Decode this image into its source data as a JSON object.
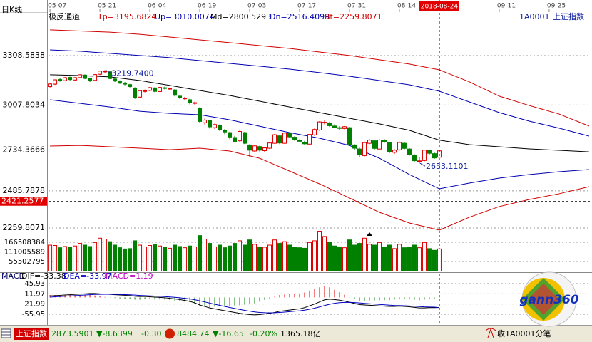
{
  "chart_data": [
    {
      "type": "candlestick",
      "title": "日K线",
      "indicator": "极反通道",
      "symbol": "1A0001",
      "name": "上证指数",
      "xlim": [
        -0.3,
        108.3
      ],
      "xticks": [
        {
          "value": 0,
          "label": "05-07"
        },
        {
          "value": 10,
          "label": "05-21"
        },
        {
          "value": 20,
          "label": "06-04"
        },
        {
          "value": 30,
          "label": "06-19"
        },
        {
          "value": 40,
          "label": "07-03"
        },
        {
          "value": 50,
          "label": "07-17"
        },
        {
          "value": 60,
          "label": "07-31"
        },
        {
          "value": 70,
          "label": "08-14"
        },
        {
          "value": 90,
          "label": "09-11"
        },
        {
          "value": 100,
          "label": "09-25"
        }
      ],
      "ylim": [
        2216.4,
        3516.6
      ],
      "yticks": [
        2259.8071,
        2485.7878,
        2734.3666,
        3007.8034,
        3308.5838
      ],
      "grid": true,
      "up_color": "#e00000",
      "down_color": "#008000",
      "candles": [
        [
          3120,
          3142,
          3115,
          3136
        ],
        [
          3135,
          3164,
          3130,
          3161
        ],
        [
          3163,
          3170,
          3150,
          3159
        ],
        [
          3156,
          3178,
          3152,
          3174
        ],
        [
          3176,
          3180,
          3156,
          3163
        ],
        [
          3160,
          3178,
          3155,
          3174
        ],
        [
          3175,
          3195,
          3170,
          3192
        ],
        [
          3190,
          3194,
          3165,
          3170
        ],
        [
          3168,
          3172,
          3148,
          3155
        ],
        [
          3158,
          3196,
          3155,
          3193
        ],
        [
          3195,
          3216,
          3190,
          3214
        ],
        [
          3212,
          3219.74,
          3200,
          3214
        ],
        [
          3210,
          3212,
          3165,
          3169
        ],
        [
          3166,
          3172,
          3148,
          3154
        ],
        [
          3150,
          3158,
          3136,
          3141
        ],
        [
          3140,
          3148,
          3128,
          3135
        ],
        [
          3132,
          3136,
          3115,
          3120
        ],
        [
          3110,
          3116,
          3045,
          3053
        ],
        [
          3056,
          3098,
          3050,
          3095
        ],
        [
          3092,
          3102,
          3085,
          3095
        ],
        [
          3097,
          3118,
          3092,
          3114
        ],
        [
          3112,
          3116,
          3086,
          3091
        ],
        [
          3090,
          3118,
          3088,
          3115
        ],
        [
          3113,
          3120,
          3102,
          3110
        ],
        [
          3106,
          3114,
          3100,
          3109
        ],
        [
          3100,
          3104,
          3060,
          3067
        ],
        [
          3062,
          3068,
          3045,
          3052
        ],
        [
          3048,
          3058,
          3038,
          3050
        ],
        [
          3040,
          3046,
          3012,
          3021
        ],
        [
          3018,
          3028,
          3010,
          3022
        ],
        [
          2990,
          2995,
          2900,
          2908
        ],
        [
          2900,
          2925,
          2890,
          2916
        ],
        [
          2912,
          2918,
          2865,
          2875
        ],
        [
          2870,
          2895,
          2862,
          2889
        ],
        [
          2885,
          2890,
          2850,
          2859
        ],
        [
          2855,
          2862,
          2830,
          2844
        ],
        [
          2840,
          2845,
          2800,
          2813
        ],
        [
          2810,
          2820,
          2780,
          2786
        ],
        [
          2790,
          2852,
          2785,
          2847
        ],
        [
          2840,
          2845,
          2770,
          2775
        ],
        [
          2765,
          2770,
          2691,
          2733
        ],
        [
          2728,
          2765,
          2720,
          2759
        ],
        [
          2755,
          2760,
          2725,
          2733
        ],
        [
          2730,
          2752,
          2722,
          2747
        ],
        [
          2745,
          2782,
          2740,
          2777
        ],
        [
          2775,
          2832,
          2772,
          2827
        ],
        [
          2820,
          2825,
          2770,
          2777
        ],
        [
          2775,
          2840,
          2772,
          2837
        ],
        [
          2835,
          2840,
          2808,
          2814
        ],
        [
          2812,
          2818,
          2790,
          2798
        ],
        [
          2795,
          2800,
          2780,
          2787
        ],
        [
          2782,
          2790,
          2765,
          2772
        ],
        [
          2770,
          2832,
          2765,
          2829
        ],
        [
          2826,
          2865,
          2820,
          2859
        ],
        [
          2856,
          2910,
          2850,
          2905
        ],
        [
          2900,
          2916,
          2890,
          2903
        ],
        [
          2898,
          2906,
          2875,
          2882
        ],
        [
          2880,
          2890,
          2868,
          2873
        ],
        [
          2870,
          2880,
          2858,
          2869
        ],
        [
          2865,
          2880,
          2860,
          2876
        ],
        [
          2870,
          2875,
          2760,
          2768
        ],
        [
          2765,
          2770,
          2735,
          2745
        ],
        [
          2740,
          2748,
          2690,
          2705
        ],
        [
          2700,
          2785,
          2695,
          2779
        ],
        [
          2775,
          2800,
          2770,
          2794
        ],
        [
          2790,
          2795,
          2735,
          2744
        ],
        [
          2740,
          2800,
          2738,
          2795
        ],
        [
          2792,
          2800,
          2778,
          2785
        ],
        [
          2780,
          2785,
          2715,
          2723
        ],
        [
          2720,
          2740,
          2710,
          2733
        ],
        [
          2735,
          2785,
          2730,
          2780
        ],
        [
          2775,
          2782,
          2738,
          2744
        ],
        [
          2740,
          2745,
          2700,
          2706
        ],
        [
          2700,
          2708,
          2660,
          2669
        ],
        [
          2665,
          2690,
          2653.11,
          2668
        ],
        [
          2670,
          2736,
          2665,
          2733
        ],
        [
          2730,
          2735,
          2705,
          2714
        ],
        [
          2712,
          2720,
          2680,
          2686
        ],
        [
          2690,
          2735,
          2688,
          2729
        ]
      ],
      "bands": [
        {
          "label": "Tp=3195.6824",
          "color": "#d00000",
          "x": [
            0,
            6,
            12,
            18,
            24,
            30,
            36,
            42,
            48,
            54,
            60,
            66,
            72,
            78,
            84,
            90,
            96,
            102,
            108
          ],
          "values": [
            3465,
            3458,
            3451,
            3438,
            3421,
            3404,
            3387,
            3369,
            3352,
            3330,
            3309,
            3283,
            3257,
            3222,
            3149,
            3062,
            3005,
            2953,
            2880
          ]
        },
        {
          "label": "Up=3010.0074",
          "color": "#0000b0",
          "x": [
            0,
            6,
            12,
            18,
            24,
            30,
            36,
            42,
            48,
            54,
            60,
            66,
            72,
            78,
            84,
            90,
            96,
            102,
            108
          ],
          "values": [
            3343,
            3335,
            3322,
            3309,
            3296,
            3278,
            3261,
            3244,
            3226,
            3205,
            3183,
            3157,
            3131,
            3092,
            3027,
            2962,
            2910,
            2867,
            2819
          ]
        },
        {
          "label": "Md=2800.5293",
          "color": "#000000",
          "x": [
            0,
            6,
            12,
            18,
            24,
            30,
            36,
            42,
            48,
            54,
            60,
            66,
            72,
            78,
            84,
            90,
            96,
            102,
            108
          ],
          "values": [
            3192,
            3187,
            3179,
            3157,
            3127,
            3096,
            3066,
            3031,
            2996,
            2962,
            2927,
            2893,
            2854,
            2794,
            2767,
            2754,
            2741,
            2732,
            2723
          ]
        },
        {
          "label": "Dn=2516.4099",
          "color": "#0000b0",
          "x": [
            0,
            6,
            12,
            18,
            24,
            30,
            36,
            42,
            48,
            54,
            60,
            66,
            72,
            78,
            84,
            90,
            96,
            102,
            108
          ],
          "values": [
            3040,
            3018,
            2996,
            2970,
            2957,
            2949,
            2918,
            2879,
            2840,
            2806,
            2762,
            2684,
            2585,
            2498,
            2533,
            2563,
            2585,
            2602,
            2615
          ]
        },
        {
          "label": "Bt=2259.8071",
          "color": "#d00000",
          "x": [
            0,
            6,
            12,
            18,
            24,
            30,
            36,
            42,
            48,
            54,
            60,
            66,
            72,
            78,
            84,
            90,
            96,
            102,
            108
          ],
          "values": [
            2758,
            2762,
            2754,
            2745,
            2736,
            2745,
            2728,
            2684,
            2606,
            2528,
            2442,
            2355,
            2290,
            2247,
            2325,
            2390,
            2433,
            2468,
            2511
          ]
        }
      ],
      "annotations": [
        {
          "x": 11,
          "value": 3219.74,
          "label": "3219.7400"
        },
        {
          "x": 74,
          "value": 2653.1101,
          "label": "2653.1101"
        }
      ],
      "cursor": {
        "x": 78,
        "x_label": "2018-08-24",
        "y": 2421.2577
      }
    },
    {
      "type": "bar",
      "ylim": [
        0,
        207620000
      ],
      "yticks": [
        55502795,
        111005589,
        166508384
      ],
      "grid": true,
      "values": [
        150000000,
        148000000,
        135000000,
        142000000,
        138000000,
        145000000,
        160000000,
        150000000,
        142000000,
        165000000,
        190000000,
        185000000,
        170000000,
        150000000,
        135000000,
        128000000,
        130000000,
        175000000,
        150000000,
        140000000,
        148000000,
        152000000,
        145000000,
        138000000,
        132000000,
        150000000,
        142000000,
        135000000,
        145000000,
        140000000,
        205000000,
        185000000,
        160000000,
        140000000,
        150000000,
        135000000,
        145000000,
        160000000,
        175000000,
        150000000,
        180000000,
        155000000,
        140000000,
        138000000,
        150000000,
        180000000,
        160000000,
        170000000,
        150000000,
        138000000,
        135000000,
        132000000,
        165000000,
        175000000,
        230000000,
        200000000,
        165000000,
        145000000,
        140000000,
        135000000,
        180000000,
        150000000,
        160000000,
        190000000,
        155000000,
        150000000,
        165000000,
        140000000,
        150000000,
        130000000,
        155000000,
        135000000,
        140000000,
        150000000,
        135000000,
        165000000,
        130000000,
        120000000,
        128000000
      ]
    },
    {
      "type": "macd",
      "title": "MACD",
      "ylim": [
        -89.1,
        64.9
      ],
      "yticks": [
        -55.95,
        -21.99,
        11.97,
        45.93
      ],
      "grid": true,
      "series": [
        {
          "label": "DIF=-33.38",
          "color": "#000000",
          "values": [
            5,
            6,
            7,
            8,
            9,
            10,
            11,
            12,
            13,
            13,
            12,
            11,
            10,
            9,
            8,
            7,
            6,
            4,
            3,
            3,
            2,
            1,
            0,
            -1,
            -3,
            -5,
            -7,
            -10,
            -13,
            -18,
            -25,
            -30,
            -35,
            -38,
            -41,
            -44,
            -47,
            -50,
            -53,
            -55,
            -57,
            -58,
            -57,
            -55,
            -53,
            -50,
            -46,
            -44,
            -42,
            -40,
            -38,
            -34,
            -28,
            -22,
            -15,
            -8,
            -6,
            -7,
            -9,
            -12,
            -16,
            -20,
            -24,
            -25,
            -26,
            -27,
            -28,
            -29,
            -30,
            -30,
            -29,
            -30,
            -31,
            -33,
            -35,
            -35,
            -34,
            -34,
            -33.38
          ]
        },
        {
          "label": "DEA=-33.97",
          "color": "#0000c0",
          "values": [
            1,
            2,
            3,
            4,
            5,
            6,
            7,
            8,
            9,
            9.8,
            10.2,
            10.4,
            10.3,
            10,
            9.6,
            9.1,
            8.5,
            7.6,
            6.7,
            6,
            5.2,
            4.4,
            3.5,
            2.6,
            1.5,
            0.2,
            -1.2,
            -3,
            -5,
            -7.6,
            -11.1,
            -14.9,
            -18.9,
            -22.7,
            -26.4,
            -29.9,
            -33.3,
            -36.6,
            -39.9,
            -42.9,
            -45.7,
            -48.2,
            -49.9,
            -50.9,
            -51.3,
            -51,
            -50,
            -48.8,
            -47.4,
            -45.9,
            -44.3,
            -42.2,
            -39.4,
            -35.9,
            -31.7,
            -27,
            -22.8,
            -19.6,
            -17.5,
            -16.4,
            -16.3,
            -17,
            -18.4,
            -19.7,
            -21,
            -22.2,
            -23.4,
            -24.5,
            -25.6,
            -26.5,
            -27,
            -27.6,
            -28.3,
            -29.2,
            -30.4,
            -31.3,
            -31.8,
            -32.2,
            -33.97
          ]
        }
      ],
      "histogram": {
        "label": "MACD=1.19",
        "color": "#c000c0",
        "up_color": "#e00000",
        "down_color": "#008000",
        "values": [
          8,
          8,
          8,
          8,
          8,
          8,
          8,
          8,
          8,
          6.4,
          3.6,
          1.2,
          -0.6,
          -2,
          -3.2,
          -4.2,
          -5,
          -7.2,
          -7.4,
          -6,
          -6.4,
          -6.8,
          -7,
          -7.2,
          -9,
          -10.4,
          -11.6,
          -14,
          -16,
          -20.8,
          -27.8,
          -30.2,
          -32.2,
          -30.6,
          -29.2,
          -28.2,
          -27.4,
          -26.8,
          -26.2,
          -24.2,
          -22.6,
          -19.6,
          -14.2,
          -8.2,
          -3.4,
          2,
          8,
          9.6,
          10.8,
          11.8,
          12.6,
          16.4,
          22.8,
          27.8,
          33.4,
          38,
          33.6,
          25.2,
          17,
          8.8,
          0.6,
          -6,
          -11.2,
          -10.6,
          -10,
          -9.6,
          -9.2,
          -9,
          -8.8,
          -7,
          -4,
          -4.8,
          -5.4,
          -7.6,
          -9.2,
          -7.4,
          -4.4,
          -3.6,
          1.19
        ]
      }
    }
  ],
  "status_bar": {
    "index_name": "上证指数",
    "price": "2873.5901",
    "change": "▼-8.6399",
    "change_pct": "-0.30",
    "sz_price": "8484.74",
    "sz_change": "▼-16.65",
    "sz_change_pct": "-0.20%",
    "turnover": "1365.18亿",
    "right": "收1A0001分笔"
  },
  "logo": {
    "text": "gann360"
  }
}
